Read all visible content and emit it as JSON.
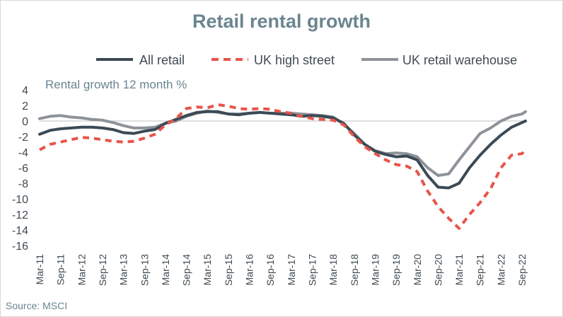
{
  "title": "Retail rental growth",
  "source": "Source: MSCI",
  "chart_data": {
    "type": "line",
    "title": "Retail rental growth",
    "annotation": "Rental growth 12 month %",
    "xlabel": "",
    "ylabel": "",
    "ylim": [
      -16,
      4
    ],
    "yticks": [
      4,
      2,
      0,
      -2,
      -4,
      -6,
      -8,
      -10,
      -12,
      -14,
      -16
    ],
    "xlim": [
      "2011-03",
      "2022-10"
    ],
    "xticks": [
      "Mar-11",
      "Sep-11",
      "Mar-12",
      "Sep-12",
      "Mar-13",
      "Sep-13",
      "Mar-14",
      "Sep-14",
      "Mar-15",
      "Sep-15",
      "Mar-16",
      "Sep-16",
      "Mar-17",
      "Sep-17",
      "Mar-18",
      "Sep-18",
      "Mar-19",
      "Sep-19",
      "Mar-20",
      "Sep-20",
      "Mar-21",
      "Sep-21",
      "Mar-22",
      "Sep-22"
    ],
    "grid": false,
    "legend_position": "top",
    "series": [
      {
        "name": "All retail",
        "color": "#3b4a55",
        "style": "solid",
        "points": [
          [
            "2011-03",
            -1.7
          ],
          [
            "2011-06",
            -1.2
          ],
          [
            "2011-09",
            -1.0
          ],
          [
            "2011-12",
            -0.9
          ],
          [
            "2012-03",
            -0.8
          ],
          [
            "2012-06",
            -0.8
          ],
          [
            "2012-09",
            -0.9
          ],
          [
            "2012-12",
            -1.1
          ],
          [
            "2013-03",
            -1.5
          ],
          [
            "2013-06",
            -1.6
          ],
          [
            "2013-09",
            -1.3
          ],
          [
            "2013-12",
            -1.1
          ],
          [
            "2014-03",
            -0.3
          ],
          [
            "2014-06",
            0.2
          ],
          [
            "2014-09",
            0.7
          ],
          [
            "2014-12",
            1.1
          ],
          [
            "2015-03",
            1.2
          ],
          [
            "2015-06",
            1.2
          ],
          [
            "2015-09",
            0.9
          ],
          [
            "2015-12",
            0.8
          ],
          [
            "2016-03",
            1.0
          ],
          [
            "2016-06",
            1.1
          ],
          [
            "2016-09",
            1.0
          ],
          [
            "2016-12",
            0.9
          ],
          [
            "2017-03",
            0.8
          ],
          [
            "2017-06",
            0.6
          ],
          [
            "2017-09",
            0.7
          ],
          [
            "2017-12",
            0.6
          ],
          [
            "2018-03",
            0.4
          ],
          [
            "2018-06",
            -0.3
          ],
          [
            "2018-09",
            -1.8
          ],
          [
            "2018-12",
            -3.0
          ],
          [
            "2019-03",
            -3.9
          ],
          [
            "2019-06",
            -4.3
          ],
          [
            "2019-09",
            -4.6
          ],
          [
            "2019-12",
            -4.5
          ],
          [
            "2020-03",
            -5.0
          ],
          [
            "2020-06",
            -7.0
          ],
          [
            "2020-09",
            -8.5
          ],
          [
            "2020-12",
            -8.6
          ],
          [
            "2021-03",
            -8.0
          ],
          [
            "2021-06",
            -6.0
          ],
          [
            "2021-09",
            -4.4
          ],
          [
            "2021-12",
            -3.0
          ],
          [
            "2022-03",
            -1.8
          ],
          [
            "2022-06",
            -0.8
          ],
          [
            "2022-09",
            -0.2
          ],
          [
            "2022-10",
            0.0
          ]
        ]
      },
      {
        "name": "UK high street",
        "color": "#e8544a",
        "style": "dashed",
        "points": [
          [
            "2011-03",
            -3.7
          ],
          [
            "2011-06",
            -3.0
          ],
          [
            "2011-09",
            -2.7
          ],
          [
            "2011-12",
            -2.4
          ],
          [
            "2012-03",
            -2.1
          ],
          [
            "2012-06",
            -2.2
          ],
          [
            "2012-09",
            -2.4
          ],
          [
            "2012-12",
            -2.6
          ],
          [
            "2013-03",
            -2.7
          ],
          [
            "2013-06",
            -2.6
          ],
          [
            "2013-09",
            -2.2
          ],
          [
            "2013-12",
            -1.7
          ],
          [
            "2014-03",
            -0.5
          ],
          [
            "2014-06",
            0.3
          ],
          [
            "2014-09",
            1.6
          ],
          [
            "2014-12",
            1.8
          ],
          [
            "2015-03",
            1.7
          ],
          [
            "2015-06",
            2.1
          ],
          [
            "2015-09",
            1.9
          ],
          [
            "2015-12",
            1.6
          ],
          [
            "2016-03",
            1.5
          ],
          [
            "2016-06",
            1.6
          ],
          [
            "2016-09",
            1.5
          ],
          [
            "2016-12",
            1.2
          ],
          [
            "2017-03",
            1.0
          ],
          [
            "2017-06",
            0.6
          ],
          [
            "2017-09",
            0.3
          ],
          [
            "2017-12",
            0.2
          ],
          [
            "2018-03",
            0.1
          ],
          [
            "2018-06",
            -0.5
          ],
          [
            "2018-09",
            -2.0
          ],
          [
            "2018-12",
            -3.3
          ],
          [
            "2019-03",
            -4.2
          ],
          [
            "2019-06",
            -5.0
          ],
          [
            "2019-09",
            -5.6
          ],
          [
            "2019-12",
            -5.8
          ],
          [
            "2020-03",
            -6.5
          ],
          [
            "2020-06",
            -9.0
          ],
          [
            "2020-09",
            -11.0
          ],
          [
            "2020-12",
            -12.5
          ],
          [
            "2021-03",
            -13.8
          ],
          [
            "2021-06",
            -12.0
          ],
          [
            "2021-09",
            -10.5
          ],
          [
            "2021-12",
            -8.7
          ],
          [
            "2022-03",
            -6.0
          ],
          [
            "2022-06",
            -4.4
          ],
          [
            "2022-09",
            -4.2
          ],
          [
            "2022-10",
            -3.7
          ]
        ]
      },
      {
        "name": "UK retail warehouse",
        "color": "#8e9399",
        "style": "solid",
        "points": [
          [
            "2011-03",
            0.3
          ],
          [
            "2011-06",
            0.6
          ],
          [
            "2011-09",
            0.7
          ],
          [
            "2011-12",
            0.5
          ],
          [
            "2012-03",
            0.4
          ],
          [
            "2012-06",
            0.2
          ],
          [
            "2012-09",
            0.1
          ],
          [
            "2012-12",
            -0.2
          ],
          [
            "2013-03",
            -0.6
          ],
          [
            "2013-06",
            -0.9
          ],
          [
            "2013-09",
            -0.9
          ],
          [
            "2013-12",
            -0.8
          ],
          [
            "2014-03",
            -0.3
          ],
          [
            "2014-06",
            0.0
          ],
          [
            "2014-09",
            0.6
          ],
          [
            "2014-12",
            1.0
          ],
          [
            "2015-03",
            1.3
          ],
          [
            "2015-06",
            1.1
          ],
          [
            "2015-09",
            0.9
          ],
          [
            "2015-12",
            0.9
          ],
          [
            "2016-03",
            1.0
          ],
          [
            "2016-06",
            1.1
          ],
          [
            "2016-09",
            1.0
          ],
          [
            "2016-12",
            1.0
          ],
          [
            "2017-03",
            1.0
          ],
          [
            "2017-06",
            0.9
          ],
          [
            "2017-09",
            0.8
          ],
          [
            "2017-12",
            0.7
          ],
          [
            "2018-03",
            0.5
          ],
          [
            "2018-06",
            -0.4
          ],
          [
            "2018-09",
            -1.6
          ],
          [
            "2018-12",
            -3.0
          ],
          [
            "2019-03",
            -3.8
          ],
          [
            "2019-06",
            -4.2
          ],
          [
            "2019-09",
            -4.1
          ],
          [
            "2019-12",
            -4.2
          ],
          [
            "2020-03",
            -4.6
          ],
          [
            "2020-06",
            -6.0
          ],
          [
            "2020-09",
            -7.0
          ],
          [
            "2020-12",
            -6.8
          ],
          [
            "2021-03",
            -5.0
          ],
          [
            "2021-06",
            -3.3
          ],
          [
            "2021-09",
            -1.6
          ],
          [
            "2021-12",
            -0.9
          ],
          [
            "2022-03",
            0.0
          ],
          [
            "2022-06",
            0.6
          ],
          [
            "2022-09",
            0.9
          ],
          [
            "2022-10",
            1.2
          ]
        ]
      }
    ]
  }
}
